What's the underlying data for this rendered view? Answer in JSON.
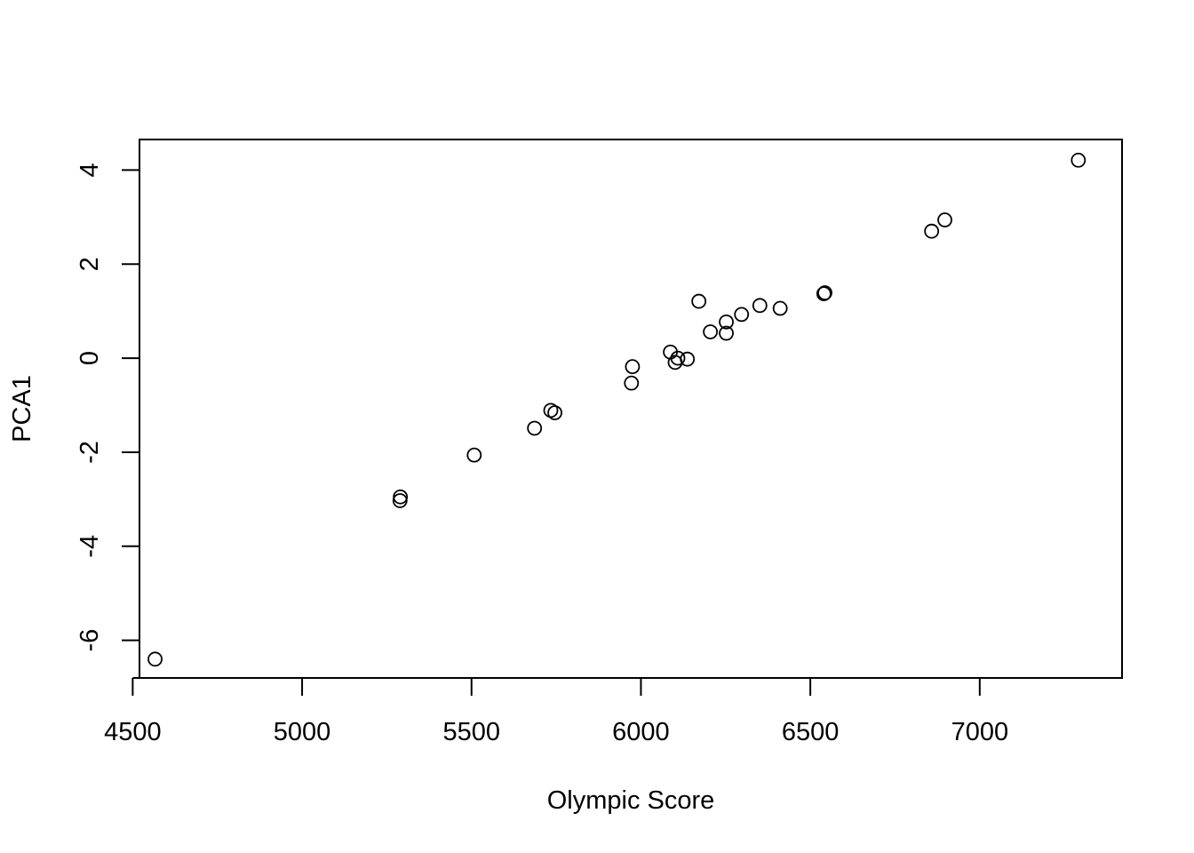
{
  "chart_data": {
    "type": "scatter",
    "title": "",
    "xlabel": "Olympic Score",
    "ylabel": "PCA1",
    "xlim": [
      4520,
      7420
    ],
    "ylim": [
      -6.8,
      4.65
    ],
    "x_ticks": [
      4500,
      5000,
      5500,
      6000,
      6500,
      7000
    ],
    "y_ticks": [
      -6,
      -4,
      -2,
      0,
      2,
      4
    ],
    "x_tick_labels": [
      "4500",
      "5000",
      "5500",
      "6000",
      "6500",
      "7000"
    ],
    "y_tick_labels": [
      "-6",
      "-4",
      "-2",
      "0",
      "2",
      "4"
    ],
    "grid": false,
    "legend": "none",
    "marker": "open-circle",
    "points": [
      {
        "x": 7291,
        "y": 4.21
      },
      {
        "x": 6897,
        "y": 2.94
      },
      {
        "x": 6858,
        "y": 2.7
      },
      {
        "x": 6540,
        "y": 1.37
      },
      {
        "x": 6543,
        "y": 1.39
      },
      {
        "x": 6411,
        "y": 1.06
      },
      {
        "x": 6351,
        "y": 1.12
      },
      {
        "x": 6297,
        "y": 0.93
      },
      {
        "x": 6252,
        "y": 0.77
      },
      {
        "x": 6252,
        "y": 0.53
      },
      {
        "x": 6205,
        "y": 0.56
      },
      {
        "x": 6171,
        "y": 1.21
      },
      {
        "x": 6137,
        "y": -0.02
      },
      {
        "x": 6109,
        "y": 0.0
      },
      {
        "x": 6101,
        "y": -0.09
      },
      {
        "x": 6087,
        "y": 0.13
      },
      {
        "x": 5975,
        "y": -0.18
      },
      {
        "x": 5972,
        "y": -0.53
      },
      {
        "x": 5746,
        "y": -1.16
      },
      {
        "x": 5734,
        "y": -1.11
      },
      {
        "x": 5686,
        "y": -1.49
      },
      {
        "x": 5508,
        "y": -2.06
      },
      {
        "x": 5290,
        "y": -2.95
      },
      {
        "x": 5289,
        "y": -3.03
      },
      {
        "x": 4566,
        "y": -6.4
      }
    ]
  }
}
